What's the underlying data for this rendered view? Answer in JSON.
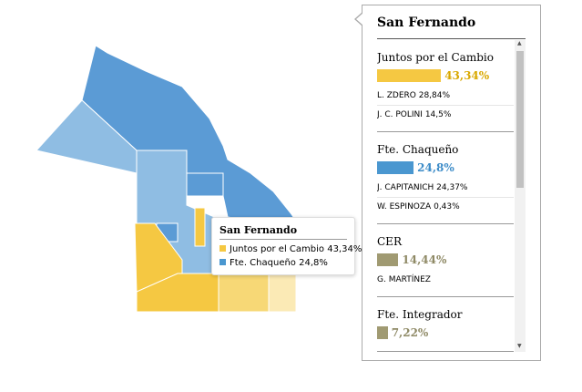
{
  "tooltip": {
    "title": "San Fernando",
    "items": [
      {
        "name": "Juntos por el Cambio",
        "share": "43,34%",
        "color": "#f5c842"
      },
      {
        "name": "Fte. Chaqueño",
        "share": "24,8%",
        "color": "#4a97d0"
      }
    ]
  },
  "panel": {
    "title": "San Fernando",
    "parties": [
      {
        "name": "Juntos por el Cambio",
        "color": "#f5c842",
        "text_color": "#d9a800",
        "share": {
          "value": 43.34,
          "label": "43,34%"
        },
        "candidates": [
          {
            "name": "L. ZDERO",
            "share": "28,84%"
          },
          {
            "name": "J. C. POLINI",
            "share": "14,5%"
          }
        ]
      },
      {
        "name": "Fte. Chaqueño",
        "color": "#4a97d0",
        "text_color": "#3d8cc8",
        "share": {
          "value": 24.8,
          "label": "24,8%"
        },
        "candidates": [
          {
            "name": "J. CAPITANICH",
            "share": "24,37%"
          },
          {
            "name": "W. ESPINOZA",
            "share": "0,43%"
          }
        ]
      },
      {
        "name": "CER",
        "color": "#a09a72",
        "text_color": "#8f8a66",
        "share": {
          "value": 14.44,
          "label": "14,44%"
        },
        "candidates": [
          {
            "name": "G. MARTÍNEZ",
            "share": null
          }
        ]
      },
      {
        "name": "Fte. Integrador",
        "color": "#a09a72",
        "text_color": "#8f8a66",
        "share": {
          "value": 7.22,
          "label": "7,22%"
        },
        "candidates": []
      }
    ]
  }
}
